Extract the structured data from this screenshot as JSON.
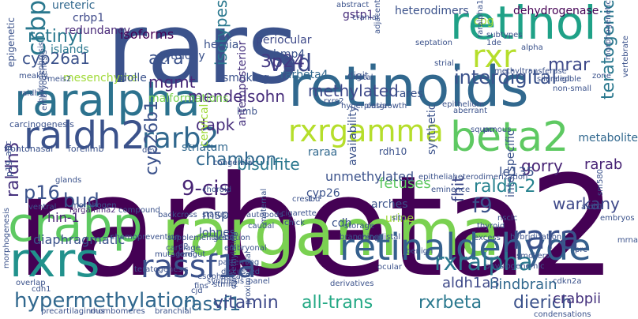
{
  "words": [
    {
      "text": "rarbeta2",
      "color": "#440154",
      "r": 0
    },
    {
      "text": "rars",
      "color": "#3b528b",
      "r": 0
    },
    {
      "text": "rargamma",
      "color": "#7ad151",
      "r": 0
    },
    {
      "text": "retinoids",
      "color": "#31688e",
      "r": 0
    },
    {
      "text": "retinol",
      "color": "#1fa187",
      "r": 0
    },
    {
      "text": "raralpha",
      "color": "#2c728e",
      "r": 0
    },
    {
      "text": "rxrs",
      "color": "#21918c",
      "r": 0
    },
    {
      "text": "crabp",
      "color": "#5ec962",
      "r": 0
    },
    {
      "text": "retinaldehyde",
      "color": "#35608d",
      "r": 0
    },
    {
      "text": "raldh2",
      "color": "#3b528b",
      "r": 0
    },
    {
      "text": "rassf1a",
      "color": "#3b528b",
      "r": 0
    },
    {
      "text": "beta2",
      "color": "#5ec962",
      "r": 0
    },
    {
      "text": "rxrgamma",
      "color": "#b5de2b",
      "r": 0
    },
    {
      "text": "rxr",
      "color": "#b5de2b",
      "r": 0
    },
    {
      "text": "rara",
      "color": "#3b528b",
      "r": 0
    },
    {
      "text": "rarb2",
      "color": "#31688e",
      "r": 0
    },
    {
      "text": "crbp",
      "color": "#2a788e",
      "r": -90
    },
    {
      "text": "rxralpha",
      "color": "#2a788e",
      "r": 0
    },
    {
      "text": "hypermethylation",
      "color": "#31688e",
      "r": 0
    },
    {
      "text": "retinyl",
      "color": "#2a788e",
      "r": 0
    },
    {
      "text": "cyp26a1",
      "color": "#3b528b",
      "r": 0
    },
    {
      "text": "interdigital",
      "color": "#3b528b",
      "r": 0
    },
    {
      "text": "methylated",
      "color": "#3e4989",
      "r": 0
    },
    {
      "text": "mendelsohn",
      "color": "#472d7b",
      "r": 0
    },
    {
      "text": "isotypes",
      "color": "#2a788e",
      "r": -90
    },
    {
      "text": "rassf1",
      "color": "#31688e",
      "r": 0
    },
    {
      "text": "vitamin",
      "color": "#3e4989",
      "r": 0
    },
    {
      "text": "all-trans",
      "color": "#22a884",
      "r": 0
    },
    {
      "text": "rxrbeta",
      "color": "#2a788e",
      "r": 0
    },
    {
      "text": "dierich",
      "color": "#3b528b",
      "r": 0
    },
    {
      "text": "teratogenic",
      "color": "#2a788e",
      "r": -90
    },
    {
      "text": "chambon",
      "color": "#31688e",
      "r": 0
    },
    {
      "text": "9-cis",
      "color": "#482475",
      "r": 0
    },
    {
      "text": "cyp26b1",
      "color": "#3b528b",
      "r": -90
    },
    {
      "text": "mgmt",
      "color": "#482878",
      "r": 0
    },
    {
      "text": "vad",
      "color": "#3e4989",
      "r": 0
    },
    {
      "text": "atra",
      "color": "#3b528b",
      "r": 0
    },
    {
      "text": "raldh3",
      "color": "#46327e",
      "r": -90
    },
    {
      "text": "p16",
      "color": "#3b528b",
      "r": 0
    },
    {
      "text": "bud",
      "color": "#3b528b",
      "r": 0
    },
    {
      "text": "dapk",
      "color": "#472d7b",
      "r": 0
    },
    {
      "text": "f9",
      "color": "#3b528b",
      "r": 0
    },
    {
      "text": "raldh-2",
      "color": "#26828e",
      "r": 0
    },
    {
      "text": "mrar",
      "color": "#3e4989",
      "r": 0
    },
    {
      "text": "3p24",
      "color": "#443983",
      "r": 0
    },
    {
      "text": "fhit",
      "color": "#3e4989",
      "r": -90
    },
    {
      "text": "warkany",
      "color": "#3e4989",
      "r": 0
    },
    {
      "text": "gorry",
      "color": "#482475",
      "r": 0
    },
    {
      "text": "rarab",
      "color": "#482475",
      "r": 0
    },
    {
      "text": "crabpii",
      "color": "#46327e",
      "r": 0
    },
    {
      "text": "aldh1a3",
      "color": "#3e4989",
      "r": 0
    },
    {
      "text": "hindbrain",
      "color": "#31688e",
      "r": 0
    },
    {
      "text": "bisulfite",
      "color": "#2a788e",
      "r": 0
    },
    {
      "text": "dehydrogenase",
      "color": "#440154",
      "r": 0
    },
    {
      "text": "heterodimers",
      "color": "#3b528b",
      "r": 0
    },
    {
      "text": "cpg",
      "color": "#a0da39",
      "r": 0
    },
    {
      "text": "gstp1",
      "color": "#472d7b",
      "r": 0
    },
    {
      "text": "crbp1",
      "color": "#3e4989",
      "r": 0
    },
    {
      "text": "ureteric",
      "color": "#31688e",
      "r": 0
    },
    {
      "text": "redundancy",
      "color": "#482878",
      "r": 0
    },
    {
      "text": "isoforms",
      "color": "#440154",
      "r": 0
    },
    {
      "text": "islands",
      "color": "#2a788e",
      "r": 0
    },
    {
      "text": "cytology",
      "color": "#3b528b",
      "r": 0
    },
    {
      "text": "hernia",
      "color": "#3b528b",
      "r": 0
    },
    {
      "text": "periocular",
      "color": "#3e4989",
      "r": 0
    },
    {
      "text": "bmp4",
      "color": "#3b528b",
      "r": 0
    },
    {
      "text": "rarbeta4",
      "color": "#31688e",
      "r": 0
    },
    {
      "text": "malformations",
      "color": "#7ad151",
      "r": 0
    },
    {
      "text": "mesenchyme",
      "color": "#a0da39",
      "r": 0
    },
    {
      "text": "dolle",
      "color": "#3b528b",
      "r": 0
    },
    {
      "text": "smoking",
      "color": "#3b528b",
      "r": 0
    },
    {
      "text": "digit",
      "color": "#3b528b",
      "r": 0
    },
    {
      "text": "rares",
      "color": "#3b528b",
      "r": 0
    },
    {
      "text": "limb",
      "color": "#3b528b",
      "r": 0
    },
    {
      "text": "striatum",
      "color": "#31688e",
      "r": 0
    },
    {
      "text": "raraa",
      "color": "#31688e",
      "r": 0
    },
    {
      "text": "rdh10",
      "color": "#3b528b",
      "r": 0
    },
    {
      "text": "metabolite",
      "color": "#31688e",
      "r": 0
    },
    {
      "text": "le135",
      "color": "#3b528b",
      "r": 0
    },
    {
      "text": "fetuses",
      "color": "#5ec962",
      "r": 0
    },
    {
      "text": "hin-1",
      "color": "#482475",
      "r": 0
    },
    {
      "text": "unmethylated",
      "color": "#3b528b",
      "r": 0
    },
    {
      "text": "cyp26",
      "color": "#3b528b",
      "r": 0
    },
    {
      "text": "msp",
      "color": "#3b528b",
      "r": 0
    },
    {
      "text": "lohnes",
      "color": "#3b528b",
      "r": 0
    },
    {
      "text": "arches",
      "color": "#3b528b",
      "r": 0
    },
    {
      "text": "urine",
      "color": "#a0da39",
      "r": 0
    },
    {
      "text": "cdh",
      "color": "#3b528b",
      "r": 0
    },
    {
      "text": "diaphragmatic",
      "color": "#3b528b",
      "r": 0
    },
    {
      "text": "cervical",
      "color": "#a0da39",
      "r": -90
    },
    {
      "text": "anteroposterior",
      "color": "#46327e",
      "r": -90
    },
    {
      "text": "availability",
      "color": "#3b528b",
      "r": -90
    },
    {
      "text": "synthetic",
      "color": "#3b528b",
      "r": -90
    },
    {
      "text": "interspecific",
      "color": "#3b528b",
      "r": -90
    },
    {
      "text": "epigenetic",
      "color": "#3b528b",
      "r": -90
    },
    {
      "text": "carcinogenesis",
      "color": "#3b528b",
      "r": 0
    },
    {
      "text": "frontonasal",
      "color": "#3b528b",
      "r": 0
    },
    {
      "text": "forelimb",
      "color": "#3b528b",
      "r": 0
    },
    {
      "text": "apc",
      "color": "#3b528b",
      "r": -90
    },
    {
      "text": "p19",
      "color": "#3b528b",
      "r": -90
    },
    {
      "text": "rargamma2",
      "color": "#482475",
      "r": 0
    },
    {
      "text": "compound",
      "color": "#3b528b",
      "r": 0
    },
    {
      "text": "chemoprevention",
      "color": "#3b528b",
      "r": 0
    },
    {
      "text": "supplementation",
      "color": "#3b528b",
      "r": 0
    },
    {
      "text": "cartilage",
      "color": "#3b528b",
      "r": 0
    },
    {
      "text": "foregut",
      "color": "#3b528b",
      "r": 0
    },
    {
      "text": "teratogenesis",
      "color": "#3b528b",
      "r": 0
    },
    {
      "text": "gestation",
      "color": "#3b528b",
      "r": 0
    },
    {
      "text": "embryonal",
      "color": "#3b528b",
      "r": 0
    },
    {
      "text": "ureter",
      "color": "#3b528b",
      "r": 0
    },
    {
      "text": "excess",
      "color": "#3b528b",
      "r": 0
    },
    {
      "text": "physiogenomic",
      "color": "#3b528b",
      "r": 0
    },
    {
      "text": "condensations",
      "color": "#3b528b",
      "r": 0
    },
    {
      "text": "derivatives",
      "color": "#3b528b",
      "r": 0
    },
    {
      "text": "stmn2",
      "color": "#3b528b",
      "r": 0
    },
    {
      "text": "cdkn2a",
      "color": "#3b528b",
      "r": 0
    },
    {
      "text": "morphogenesis",
      "color": "#3b528b",
      "r": -90
    },
    {
      "text": "overlap",
      "color": "#3b528b",
      "r": 0
    },
    {
      "text": "cdh1",
      "color": "#3b528b",
      "r": 0
    },
    {
      "text": "precartilaginous",
      "color": "#3b528b",
      "r": 0
    },
    {
      "text": "rhombomeres",
      "color": "#3b528b",
      "r": 0
    },
    {
      "text": "branchial",
      "color": "#3b528b",
      "r": 0
    },
    {
      "text": "backcross",
      "color": "#3b528b",
      "r": 0
    },
    {
      "text": "status",
      "color": "#3b528b",
      "r": 0
    },
    {
      "text": "autopods",
      "color": "#3b528b",
      "r": 0
    },
    {
      "text": "crest",
      "color": "#3b528b",
      "r": 0
    },
    {
      "text": "lbd",
      "color": "#3b528b",
      "r": 0
    },
    {
      "text": "cigarette",
      "color": "#3b528b",
      "r": 0
    },
    {
      "text": "chick",
      "color": "#3b528b",
      "r": 0
    },
    {
      "text": "storage",
      "color": "#3b528b",
      "r": 0
    },
    {
      "text": "branching",
      "color": "#3b528b",
      "r": 0
    },
    {
      "text": "situ",
      "color": "#3b528b",
      "r": 0
    },
    {
      "text": "distal",
      "color": "#3b528b",
      "r": 0
    },
    {
      "text": "nsclc",
      "color": "#3b528b",
      "r": 0
    },
    {
      "text": "hybridization",
      "color": "#3b528b",
      "r": 0
    },
    {
      "text": "thyroid",
      "color": "#3b528b",
      "r": 0
    },
    {
      "text": "epitheliaheterodimerization",
      "color": "#3b528b",
      "r": 0
    },
    {
      "text": "eminence",
      "color": "#3b528b",
      "r": 0
    },
    {
      "text": "choroid",
      "color": "#3b528b",
      "r": 0
    },
    {
      "text": "congenital",
      "color": "#3b528b",
      "r": 0
    },
    {
      "text": "glands",
      "color": "#3b528b",
      "r": 0
    },
    {
      "text": "abstract",
      "color": "#3b528b",
      "r": 0
    },
    {
      "text": "septation",
      "color": "#3b528b",
      "r": 0
    },
    {
      "text": "cranial",
      "color": "#3b528b",
      "r": 0
    },
    {
      "text": "subtypes",
      "color": "#3b528b",
      "r": 0
    },
    {
      "text": "alpha",
      "color": "#3b528b",
      "r": 0
    },
    {
      "text": "morphogenetic",
      "color": "#3b528b",
      "r": -90
    },
    {
      "text": "adjacent",
      "color": "#3b528b",
      "r": -90
    },
    {
      "text": "methyltransferase",
      "color": "#3b528b",
      "r": 0
    },
    {
      "text": "eligible",
      "color": "#3b528b",
      "r": 0
    },
    {
      "text": "non-small",
      "color": "#3b528b",
      "r": 0
    },
    {
      "text": "silenced",
      "color": "#3b528b",
      "r": 0
    },
    {
      "text": "zone",
      "color": "#3b528b",
      "r": 0
    },
    {
      "text": "vertebrate",
      "color": "#3b528b",
      "r": -90
    },
    {
      "text": "strial",
      "color": "#3b528b",
      "r": 0
    },
    {
      "text": "fetal",
      "color": "#3b528b",
      "r": 0
    },
    {
      "text": "hyperplasia",
      "color": "#3b528b",
      "r": 0
    },
    {
      "text": "outgrowth",
      "color": "#3b528b",
      "r": 0
    },
    {
      "text": "epithelium",
      "color": "#3b528b",
      "r": 0
    },
    {
      "text": "aberrant",
      "color": "#3b528b",
      "r": 0
    },
    {
      "text": "pcr",
      "color": "#3b528b",
      "r": 0
    },
    {
      "text": "squamous",
      "color": "#3b528b",
      "r": 0
    },
    {
      "text": "meakly",
      "color": "#3b528b",
      "r": 0
    },
    {
      "text": "meis2",
      "color": "#3b528b",
      "r": 0
    },
    {
      "text": "raldh1",
      "color": "#3b528b",
      "r": 0
    },
    {
      "text": "hydronephrosis",
      "color": "#3b528b",
      "r": -90
    },
    {
      "text": "embryogenesis",
      "color": "#3b528b",
      "r": -90
    },
    {
      "text": "ventral",
      "color": "#3b528b",
      "r": 0
    },
    {
      "text": "morphogen",
      "color": "#3b528b",
      "r": 0
    },
    {
      "text": "d2",
      "color": "#3b528b",
      "r": 0
    },
    {
      "text": "caudal",
      "color": "#3b528b",
      "r": 0
    },
    {
      "text": "esophageal",
      "color": "#3b528b",
      "r": 0
    },
    {
      "text": "patterning",
      "color": "#3b528b",
      "r": 0
    },
    {
      "text": "discussed",
      "color": "#3b528b",
      "r": 0
    },
    {
      "text": "synthesis",
      "color": "#3b528b",
      "r": 0
    },
    {
      "text": "fins",
      "color": "#3b528b",
      "r": 0
    },
    {
      "text": "cjd",
      "color": "#3b528b",
      "r": 0
    },
    {
      "text": "demethylating",
      "color": "#3b528b",
      "r": -90
    },
    {
      "text": "proximodistal",
      "color": "#3b528b",
      "r": -90
    },
    {
      "text": "ocular",
      "color": "#3b528b",
      "r": 0
    },
    {
      "text": "benign",
      "color": "#3b528b",
      "r": 0
    },
    {
      "text": "smokers",
      "color": "#3b528b",
      "r": 0
    },
    {
      "text": "prc",
      "color": "#3b528b",
      "r": 0
    },
    {
      "text": "aldh1",
      "color": "#3b528b",
      "r": 0
    },
    {
      "text": "sm580",
      "color": "#3b528b",
      "r": -90
    },
    {
      "text": "embryos",
      "color": "#3b528b",
      "r": 0
    },
    {
      "text": "mrna",
      "color": "#3b528b",
      "r": 0
    },
    {
      "text": "mutagenic",
      "color": "#3b528b",
      "r": 0
    },
    {
      "text": "raralpha1",
      "color": "#3b528b",
      "r": -90
    },
    {
      "text": "1de",
      "color": "#3b528b",
      "r": 0
    },
    {
      "text": "panel",
      "color": "#3b528b",
      "r": 0
    },
    {
      "text": "dev",
      "color": "#3b528b",
      "r": 0
    },
    {
      "text": "maternal",
      "color": "#3b528b",
      "r": -90
    },
    {
      "text": "rxrs2",
      "color": "#3b528b",
      "r": 0
    }
  ]
}
